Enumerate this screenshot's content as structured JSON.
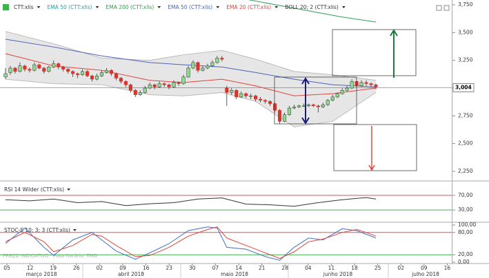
{
  "chart_data": [
    {
      "type": "candlestick",
      "legend": [
        {
          "label": "CTT:xlis",
          "color": "#333333"
        },
        {
          "label": "EMA 50 (CTT:xlis)",
          "color": "#2a9fa0"
        },
        {
          "label": "EMA 200 (CTT:xlis)",
          "color": "#2e9e4f"
        },
        {
          "label": "EMA 50 (CTT:xlis)",
          "color": "#4a62b8"
        },
        {
          "label": "EMA 20 (CTT:xlis)",
          "color": "#e0443a"
        },
        {
          "label": "BOLL 20; 2 (CTT:xlis)",
          "color": "#333333"
        }
      ],
      "up_color": "#8fd98f",
      "down_color": "#d9342b",
      "ohlc": [
        [
          3100,
          3180,
          3080,
          3130
        ],
        [
          3140,
          3200,
          3120,
          3180
        ],
        [
          3180,
          3190,
          3130,
          3150
        ],
        [
          3150,
          3230,
          3140,
          3200
        ],
        [
          3200,
          3210,
          3150,
          3170
        ],
        [
          3170,
          3185,
          3140,
          3160
        ],
        [
          3160,
          3230,
          3150,
          3210
        ],
        [
          3210,
          3220,
          3170,
          3180
        ],
        [
          3180,
          3190,
          3130,
          3150
        ],
        [
          3150,
          3200,
          3140,
          3190
        ],
        [
          3190,
          3250,
          3180,
          3220
        ],
        [
          3220,
          3230,
          3170,
          3190
        ],
        [
          3190,
          3200,
          3150,
          3170
        ],
        [
          3170,
          3180,
          3130,
          3150
        ],
        [
          3150,
          3160,
          3100,
          3130
        ],
        [
          3130,
          3140,
          3090,
          3120
        ],
        [
          3120,
          3170,
          3110,
          3150
        ],
        [
          3150,
          3160,
          3100,
          3110
        ],
        [
          3110,
          3120,
          3060,
          3080
        ],
        [
          3080,
          3130,
          3070,
          3110
        ],
        [
          3110,
          3160,
          3100,
          3140
        ],
        [
          3140,
          3180,
          3130,
          3160
        ],
        [
          3160,
          3170,
          3110,
          3130
        ],
        [
          3130,
          3140,
          3070,
          3090
        ],
        [
          3090,
          3100,
          3040,
          3060
        ],
        [
          3060,
          3070,
          3010,
          3030
        ],
        [
          3030,
          3040,
          2960,
          2980
        ],
        [
          2980,
          2990,
          2920,
          2940
        ],
        [
          2940,
          2980,
          2930,
          2960
        ],
        [
          2960,
          3020,
          2950,
          3000
        ],
        [
          3000,
          3050,
          2990,
          3030
        ],
        [
          3030,
          3040,
          2990,
          3010
        ],
        [
          3010,
          3060,
          3000,
          3040
        ],
        [
          3040,
          3050,
          3010,
          3030
        ],
        [
          3030,
          3040,
          2990,
          3010
        ],
        [
          3010,
          3070,
          3000,
          3050
        ],
        [
          3050,
          3060,
          3020,
          3040
        ],
        [
          3040,
          3120,
          3030,
          3100
        ],
        [
          3100,
          3200,
          3090,
          3180
        ],
        [
          3180,
          3250,
          3170,
          3230
        ],
        [
          3230,
          3240,
          3140,
          3160
        ],
        [
          3160,
          3200,
          3150,
          3180
        ],
        [
          3180,
          3220,
          3170,
          3200
        ],
        [
          3200,
          3250,
          3190,
          3230
        ],
        [
          3230,
          3290,
          3220,
          3270
        ],
        [
          3270,
          3290,
          3240,
          3260
        ],
        [
          3000,
          3020,
          2840,
          2960
        ],
        [
          2960,
          3000,
          2940,
          2980
        ],
        [
          2980,
          2990,
          2900,
          2920
        ],
        [
          2920,
          2970,
          2910,
          2950
        ],
        [
          2950,
          2960,
          2910,
          2930
        ],
        [
          2930,
          2950,
          2900,
          2930
        ],
        [
          2930,
          2940,
          2880,
          2900
        ],
        [
          2900,
          2920,
          2870,
          2890
        ],
        [
          2890,
          2900,
          2860,
          2880
        ],
        [
          2880,
          2890,
          2840,
          2860
        ],
        [
          2860,
          2870,
          2780,
          2800
        ],
        [
          2800,
          2810,
          2680,
          2700
        ],
        [
          2700,
          2780,
          2690,
          2760
        ],
        [
          2760,
          2840,
          2750,
          2820
        ],
        [
          2820,
          2850,
          2810,
          2830
        ],
        [
          2830,
          2850,
          2820,
          2840
        ],
        [
          2840,
          2860,
          2830,
          2840
        ],
        [
          2840,
          2860,
          2830,
          2850
        ],
        [
          2850,
          2860,
          2830,
          2840
        ],
        [
          2840,
          2850,
          2780,
          2830
        ],
        [
          2830,
          2870,
          2820,
          2850
        ],
        [
          2850,
          2900,
          2840,
          2890
        ],
        [
          2890,
          2940,
          2880,
          2920
        ],
        [
          2920,
          2960,
          2910,
          2950
        ],
        [
          2950,
          3000,
          2940,
          2980
        ],
        [
          2980,
          3020,
          2970,
          3000
        ],
        [
          3000,
          3080,
          2990,
          3060
        ],
        [
          3060,
          3070,
          3000,
          3020
        ],
        [
          3020,
          3070,
          3010,
          3050
        ],
        [
          3050,
          3070,
          3020,
          3040
        ],
        [
          3040,
          3050,
          3010,
          3030
        ],
        [
          3030,
          3040,
          2990,
          3010
        ]
      ],
      "band": {
        "color": "#e6e6e6",
        "line_color": "#b0b0b0",
        "x": [
          0,
          10,
          20,
          30,
          37,
          45,
          52,
          60,
          68,
          77
        ],
        "upper": [
          3510,
          3400,
          3270,
          3250,
          3300,
          3340,
          3260,
          3150,
          3120,
          3070
        ],
        "lower": [
          3080,
          3040,
          3030,
          2940,
          2930,
          2960,
          2880,
          2650,
          2700,
          2960
        ]
      },
      "overlays": [
        {
          "color": "#4a62b8",
          "x": [
            0,
            10,
            20,
            30,
            37,
            45,
            52,
            60,
            68,
            77
          ],
          "values": [
            3440,
            3370,
            3290,
            3230,
            3210,
            3190,
            3140,
            3080,
            3030,
            3010
          ]
        },
        {
          "color": "#e0443a",
          "x": [
            0,
            10,
            20,
            30,
            37,
            45,
            52,
            60,
            68,
            77
          ],
          "values": [
            3310,
            3200,
            3160,
            3070,
            3050,
            3080,
            3020,
            2930,
            2950,
            3000
          ]
        },
        {
          "color": "#2e9e4f",
          "x": [
            50,
            60,
            70,
            77
          ],
          "values": [
            3800,
            3720,
            3640,
            3595
          ]
        }
      ],
      "last": {
        "value": 3004,
        "label": "3,004",
        "color": "#e0443a"
      },
      "ylim": [
        2250,
        3750
      ],
      "yticks": [
        {
          "value": 3750,
          "label": "3,750"
        },
        {
          "value": 3500,
          "label": "3,500"
        },
        {
          "value": 3250,
          "label": "3,250"
        },
        {
          "value": 3000,
          "label": "3,000"
        },
        {
          "value": 2750,
          "label": "2,750"
        },
        {
          "value": 2500,
          "label": "2,500"
        },
        {
          "value": 2250,
          "label": "2,250"
        }
      ]
    },
    {
      "type": "line",
      "title": "RSI 14 Wilder (CTT:xlis)",
      "series": [
        {
          "color": "#333333",
          "x": [
            0,
            5,
            10,
            15,
            20,
            25,
            30,
            35,
            40,
            45,
            50,
            55,
            60,
            65,
            70,
            75,
            77
          ],
          "values": [
            58,
            55,
            60,
            50,
            53,
            42,
            47,
            50,
            60,
            63,
            46,
            44,
            40,
            50,
            58,
            64,
            60
          ]
        }
      ],
      "ylim": [
        0,
        100
      ],
      "yticks": [
        {
          "value": 70,
          "label": "70,00",
          "color": "#e05050"
        },
        {
          "value": 30,
          "label": "30,00",
          "color": "#3cb44b"
        }
      ]
    },
    {
      "type": "line",
      "title": "STOC-S 10; 3; 3 (CTT:xlis)",
      "series": [
        {
          "color": "#3f6fc4",
          "x": [
            0,
            4,
            8,
            10,
            14,
            18,
            20,
            23,
            27,
            30,
            34,
            38,
            42,
            44,
            46,
            50,
            54,
            57,
            60,
            63,
            66,
            70,
            73,
            75,
            77
          ],
          "values": [
            50,
            92,
            40,
            18,
            60,
            80,
            60,
            30,
            8,
            25,
            50,
            85,
            95,
            92,
            40,
            35,
            15,
            5,
            40,
            65,
            60,
            90,
            85,
            75,
            65
          ]
        },
        {
          "color": "#e0443a",
          "x": [
            0,
            4,
            8,
            10,
            14,
            18,
            20,
            23,
            27,
            30,
            34,
            38,
            42,
            44,
            46,
            50,
            54,
            57,
            60,
            63,
            66,
            70,
            73,
            75,
            77
          ],
          "values": [
            55,
            80,
            55,
            28,
            45,
            75,
            70,
            45,
            15,
            18,
            40,
            70,
            88,
            95,
            65,
            45,
            25,
            10,
            28,
            55,
            62,
            80,
            88,
            80,
            70
          ]
        }
      ],
      "ylim": [
        0,
        100
      ],
      "yticks": [
        {
          "value": 100,
          "label": "100,00"
        },
        {
          "value": 80,
          "label": "80,00",
          "color": "#e05050"
        },
        {
          "value": 20,
          "label": "20,00",
          "color": "#3cb44b"
        },
        {
          "value": 0,
          "label": "0,00"
        }
      ],
      "note": "PREÇO INDICATIVO - Fuso horário: TMG"
    }
  ],
  "time_axis": {
    "days": [
      "05",
      "12",
      "19",
      "26",
      "02",
      "09",
      "16",
      "23",
      "30",
      "07",
      "14",
      "21",
      "28",
      "04",
      "11",
      "18",
      "25",
      "02",
      "09",
      "16"
    ],
    "months": [
      "março 2018",
      "abril 2018",
      "maio 2018",
      "junho 2018",
      "julho 2018"
    ]
  }
}
